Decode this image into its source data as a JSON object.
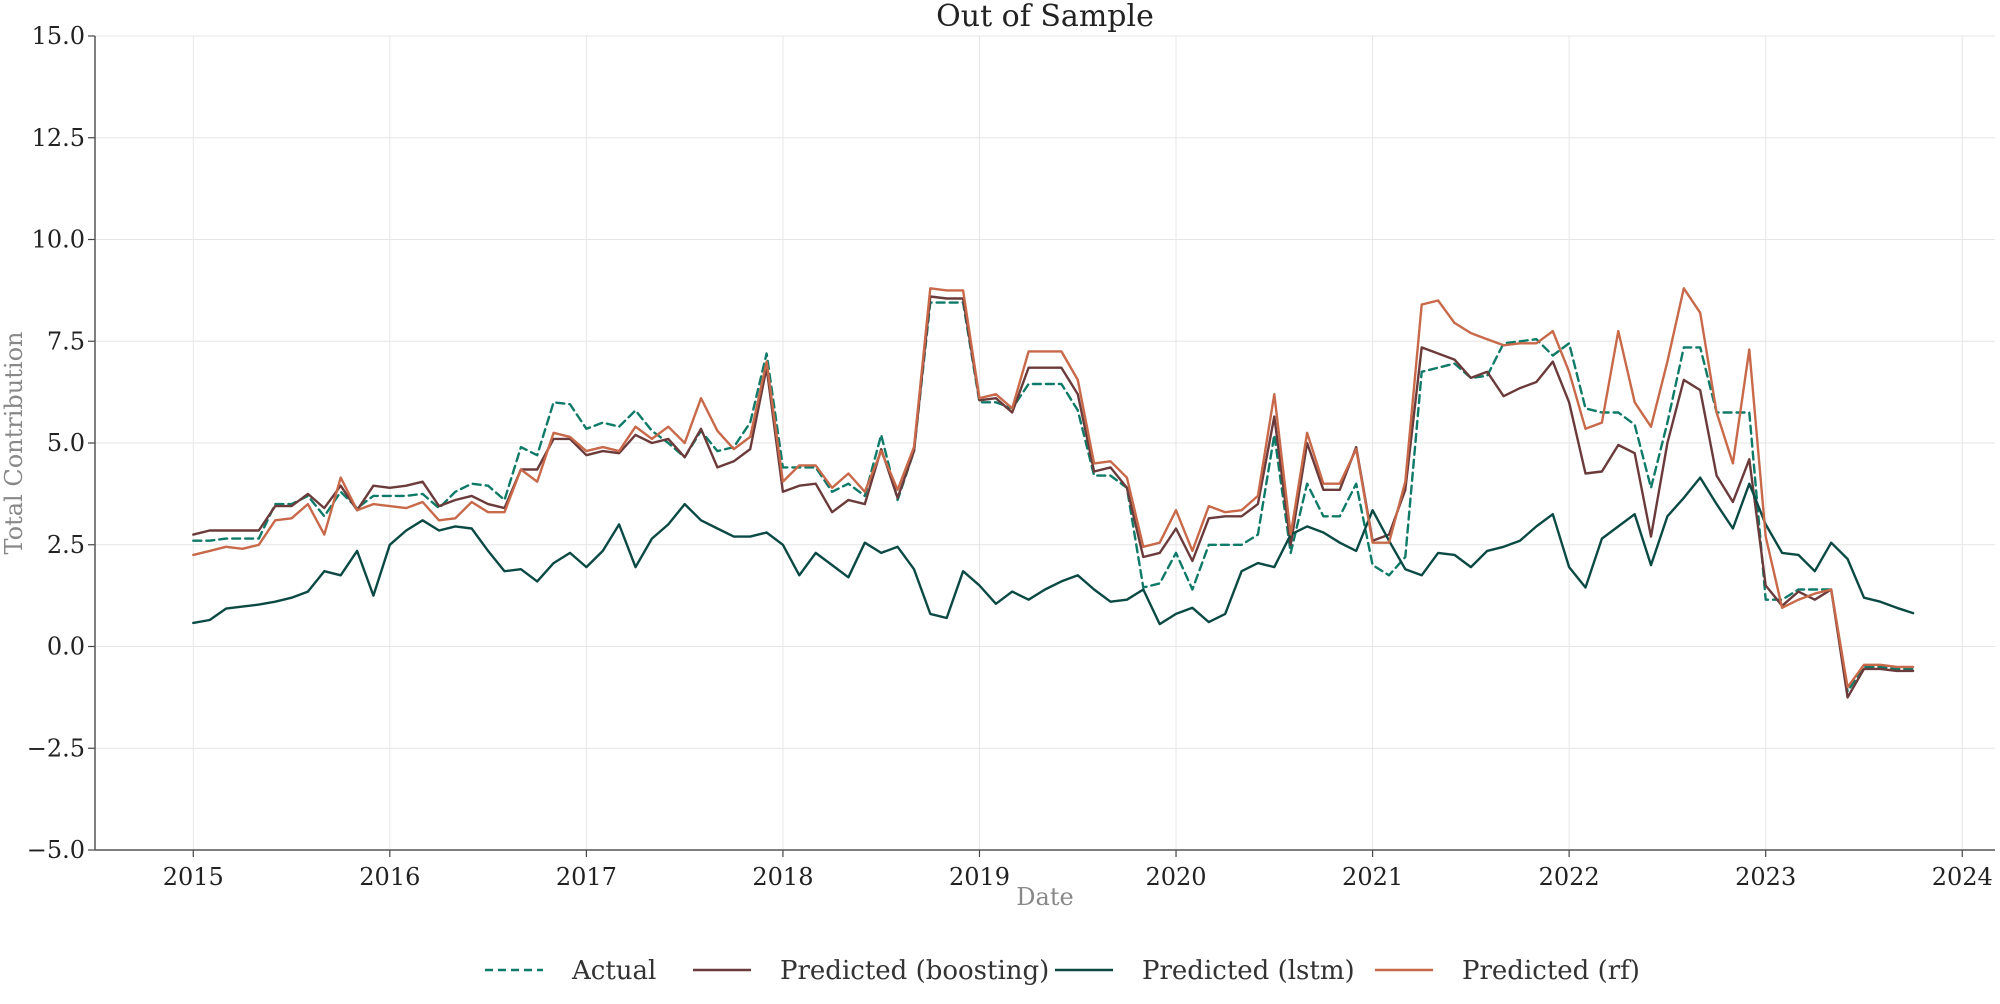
{
  "chart_data": {
    "type": "line",
    "title": "Out of Sample",
    "xlabel": "Date",
    "ylabel": "Total Contribution",
    "xlim": [
      "2014-07-01",
      "2024-03-01"
    ],
    "ylim": [
      -5.0,
      15.0
    ],
    "x_ticks": [
      "2015",
      "2016",
      "2017",
      "2018",
      "2019",
      "2020",
      "2021",
      "2022",
      "2023",
      "2024"
    ],
    "y_ticks": [
      -5.0,
      -2.5,
      0.0,
      2.5,
      5.0,
      7.5,
      10.0,
      12.5,
      15.0
    ],
    "y_tick_labels": [
      "−5.0",
      "−2.5",
      "0.0",
      "2.5",
      "5.0",
      "7.5",
      "10.0",
      "12.5",
      "15.0"
    ],
    "grid": true,
    "legend_position": "bottom",
    "x": [
      "2015-01",
      "2015-02",
      "2015-03",
      "2015-04",
      "2015-05",
      "2015-06",
      "2015-07",
      "2015-08",
      "2015-09",
      "2015-10",
      "2015-11",
      "2015-12",
      "2016-01",
      "2016-02",
      "2016-03",
      "2016-04",
      "2016-05",
      "2016-06",
      "2016-07",
      "2016-08",
      "2016-09",
      "2016-10",
      "2016-11",
      "2016-12",
      "2017-01",
      "2017-02",
      "2017-03",
      "2017-04",
      "2017-05",
      "2017-06",
      "2017-07",
      "2017-08",
      "2017-09",
      "2017-10",
      "2017-11",
      "2017-12",
      "2018-01",
      "2018-02",
      "2018-03",
      "2018-04",
      "2018-05",
      "2018-06",
      "2018-07",
      "2018-08",
      "2018-09",
      "2018-10",
      "2018-11",
      "2018-12",
      "2019-01",
      "2019-02",
      "2019-03",
      "2019-04",
      "2019-05",
      "2019-06",
      "2019-07",
      "2019-08",
      "2019-09",
      "2019-10",
      "2019-11",
      "2019-12",
      "2020-01",
      "2020-02",
      "2020-03",
      "2020-04",
      "2020-05",
      "2020-06",
      "2020-07",
      "2020-08",
      "2020-09",
      "2020-10",
      "2020-11",
      "2020-12",
      "2021-01",
      "2021-02",
      "2021-03",
      "2021-04",
      "2021-05",
      "2021-06",
      "2021-07",
      "2021-08",
      "2021-09",
      "2021-10",
      "2021-11",
      "2021-12",
      "2022-01",
      "2022-02",
      "2022-03",
      "2022-04",
      "2022-05",
      "2022-06",
      "2022-07",
      "2022-08",
      "2022-09",
      "2022-10",
      "2022-11",
      "2022-12",
      "2023-01",
      "2023-02",
      "2023-03",
      "2023-04",
      "2023-05",
      "2023-06",
      "2023-07",
      "2023-08",
      "2023-09",
      "2023-10"
    ],
    "series": [
      {
        "name": "Actual",
        "color": "#0f7a68",
        "dash": "dashed",
        "values": [
          2.6,
          2.6,
          2.65,
          2.65,
          2.65,
          3.5,
          3.5,
          3.7,
          3.2,
          3.8,
          3.4,
          3.7,
          3.7,
          3.7,
          3.75,
          3.4,
          3.8,
          4.0,
          3.95,
          3.6,
          4.9,
          4.7,
          6.0,
          5.95,
          5.35,
          5.5,
          5.4,
          5.8,
          5.3,
          5.0,
          4.65,
          5.3,
          4.8,
          4.9,
          5.5,
          7.2,
          4.4,
          4.4,
          4.4,
          3.8,
          4.0,
          3.7,
          5.2,
          3.6,
          4.8,
          8.45,
          8.45,
          8.45,
          6.0,
          6.0,
          5.85,
          6.45,
          6.45,
          6.45,
          5.8,
          4.2,
          4.2,
          3.9,
          1.45,
          1.55,
          2.3,
          1.4,
          2.5,
          2.5,
          2.5,
          2.75,
          5.2,
          2.3,
          4.0,
          3.2,
          3.2,
          4.0,
          2.0,
          1.75,
          2.2,
          6.75,
          6.85,
          6.95,
          6.6,
          6.65,
          7.45,
          7.5,
          7.55,
          7.15,
          7.45,
          5.85,
          5.75,
          5.75,
          5.45,
          3.9,
          5.5,
          7.35,
          7.35,
          5.75,
          5.75,
          5.75,
          1.15,
          1.15,
          1.4,
          1.4,
          1.4,
          -1.1,
          -0.5,
          -0.5,
          -0.55,
          -0.55
        ]
      },
      {
        "name": "Predicted (boosting)",
        "color": "#6b3b3b",
        "dash": "solid",
        "values": [
          2.75,
          2.85,
          2.85,
          2.85,
          2.85,
          3.45,
          3.45,
          3.75,
          3.4,
          3.95,
          3.35,
          3.95,
          3.9,
          3.95,
          4.05,
          3.45,
          3.6,
          3.7,
          3.5,
          3.4,
          4.35,
          4.35,
          5.1,
          5.1,
          4.7,
          4.8,
          4.75,
          5.2,
          5.0,
          5.1,
          4.65,
          5.35,
          4.4,
          4.55,
          4.85,
          6.85,
          3.8,
          3.95,
          4.0,
          3.3,
          3.6,
          3.5,
          4.85,
          3.65,
          4.8,
          8.6,
          8.55,
          8.55,
          6.05,
          6.1,
          5.75,
          6.85,
          6.85,
          6.85,
          6.2,
          4.3,
          4.4,
          3.9,
          2.2,
          2.3,
          2.9,
          2.1,
          3.15,
          3.2,
          3.2,
          3.5,
          5.65,
          2.5,
          5.0,
          3.85,
          3.85,
          4.9,
          2.6,
          2.75,
          3.85,
          7.35,
          7.2,
          7.05,
          6.6,
          6.75,
          6.15,
          6.35,
          6.5,
          7.0,
          6.0,
          4.25,
          4.3,
          4.95,
          4.75,
          2.7,
          5.0,
          6.55,
          6.3,
          4.2,
          3.55,
          4.6,
          1.5,
          1.0,
          1.35,
          1.15,
          1.4,
          -1.25,
          -0.55,
          -0.55,
          -0.6,
          -0.6
        ]
      },
      {
        "name": "Predicted (lstm)",
        "color": "#0b4a44",
        "dash": "solid",
        "values": [
          0.58,
          0.65,
          0.93,
          0.98,
          1.03,
          1.1,
          1.2,
          1.35,
          1.85,
          1.75,
          2.35,
          1.25,
          2.5,
          2.85,
          3.1,
          2.85,
          2.95,
          2.9,
          2.35,
          1.85,
          1.9,
          1.6,
          2.05,
          2.3,
          1.95,
          2.35,
          3.0,
          1.95,
          2.65,
          3.0,
          3.5,
          3.1,
          2.9,
          2.7,
          2.7,
          2.8,
          2.5,
          1.75,
          2.3,
          2.0,
          1.7,
          2.55,
          2.3,
          2.45,
          1.9,
          0.8,
          0.7,
          1.85,
          1.5,
          1.05,
          1.35,
          1.15,
          1.4,
          1.6,
          1.75,
          1.4,
          1.1,
          1.15,
          1.4,
          0.55,
          0.8,
          0.95,
          0.6,
          0.8,
          1.85,
          2.05,
          1.95,
          2.75,
          2.95,
          2.8,
          2.55,
          2.35,
          3.35,
          2.6,
          1.9,
          1.75,
          2.3,
          2.25,
          1.95,
          2.35,
          2.45,
          2.6,
          2.95,
          3.25,
          1.95,
          1.45,
          2.65,
          2.95,
          3.25,
          2.0,
          3.2,
          3.65,
          4.15,
          3.5,
          2.9,
          4.0,
          3.0,
          2.3,
          2.25,
          1.85,
          2.55,
          2.15,
          1.2,
          1.1,
          0.95,
          0.82
        ]
      },
      {
        "name": "Predicted (rf)",
        "color": "#c8694a",
        "dash": "solid",
        "values": [
          2.25,
          2.35,
          2.45,
          2.4,
          2.5,
          3.1,
          3.15,
          3.5,
          2.75,
          4.15,
          3.35,
          3.5,
          3.45,
          3.4,
          3.55,
          3.1,
          3.15,
          3.55,
          3.3,
          3.3,
          4.35,
          4.05,
          5.25,
          5.15,
          4.8,
          4.9,
          4.8,
          5.4,
          5.1,
          5.4,
          5.0,
          6.1,
          5.3,
          4.85,
          5.15,
          7.0,
          4.05,
          4.45,
          4.45,
          3.9,
          4.25,
          3.8,
          4.8,
          3.85,
          4.9,
          8.8,
          8.75,
          8.75,
          6.1,
          6.2,
          5.85,
          7.25,
          7.25,
          7.25,
          6.55,
          4.5,
          4.55,
          4.15,
          2.45,
          2.55,
          3.35,
          2.35,
          3.45,
          3.3,
          3.35,
          3.7,
          6.2,
          2.75,
          5.25,
          4.0,
          4.0,
          4.85,
          2.55,
          2.55,
          4.05,
          8.4,
          8.5,
          7.95,
          7.7,
          7.55,
          7.4,
          7.45,
          7.45,
          7.75,
          6.75,
          5.35,
          5.5,
          7.75,
          6.0,
          5.4,
          7.0,
          8.8,
          8.2,
          5.75,
          4.5,
          7.3,
          2.7,
          0.95,
          1.15,
          1.3,
          1.4,
          -1.0,
          -0.45,
          -0.45,
          -0.5,
          -0.5
        ]
      }
    ]
  }
}
